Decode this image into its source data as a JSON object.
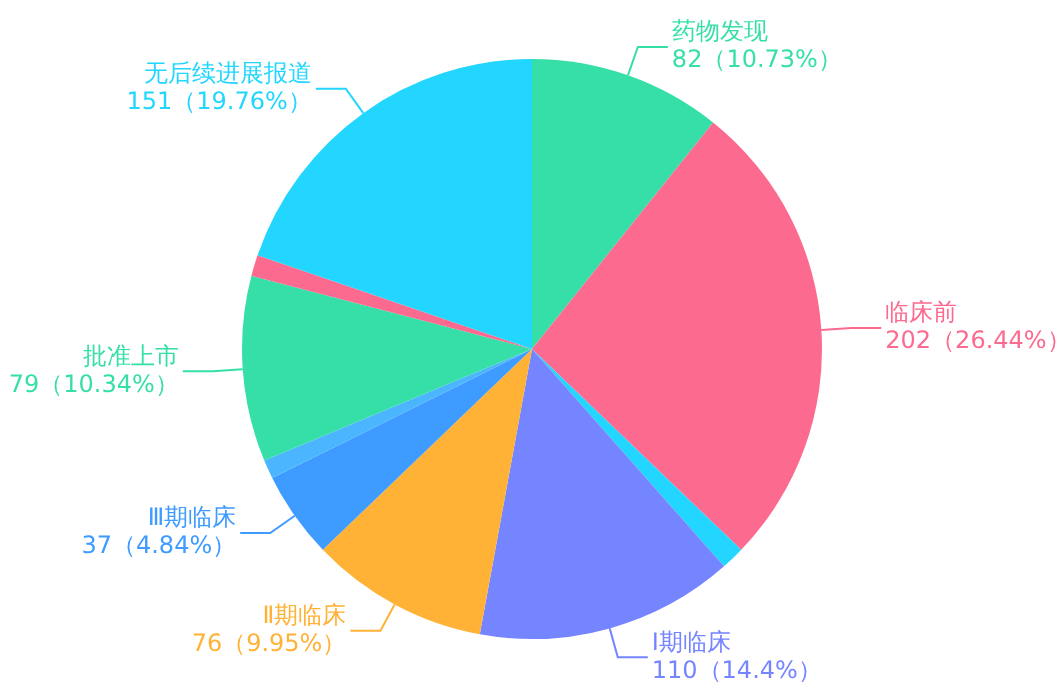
{
  "chart_data": {
    "type": "pie",
    "categories": [
      "药物发现",
      "临床前",
      null,
      "Ⅰ期临床",
      "Ⅱ期临床",
      "Ⅲ期临床",
      null,
      "批准上市",
      null,
      "无后续进展报道"
    ],
    "values": [
      82,
      202,
      10,
      110,
      76,
      37,
      8,
      79,
      9,
      151
    ],
    "value_labels": [
      "82（10.73%）",
      "202（26.44%）",
      null,
      "110（14.4%）",
      "76（9.95%）",
      "37（4.84%）",
      null,
      "79（10.34%）",
      null,
      "151（19.76%）"
    ],
    "colors": [
      "#36dfa8",
      "#fc6a8f",
      "#22d6ff",
      "#7585ff",
      "#ffb236",
      "#3e9bff",
      "#4bb5ff",
      "#36dfa8",
      "#fc6a8f",
      "#22d6ff"
    ]
  }
}
